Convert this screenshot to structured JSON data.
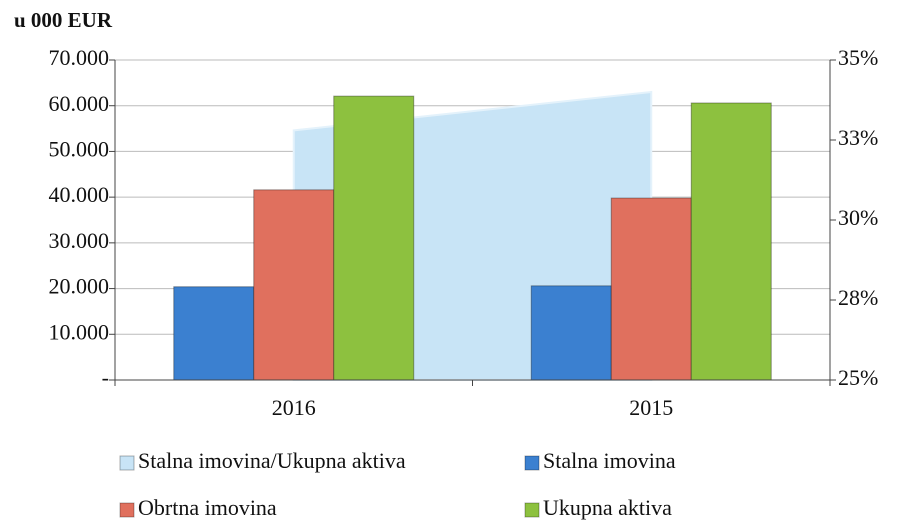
{
  "chart_data": {
    "type": "bar",
    "title": "u 000 EUR",
    "categories": [
      "2016",
      "2015"
    ],
    "series": [
      {
        "name": "Stalna imovina/Ukupna aktiva",
        "type": "area",
        "axis": "y2",
        "color": "#c8e4f6",
        "values": [
          32.8,
          34.0
        ]
      },
      {
        "name": "Stalna imovina",
        "color": "#3b80d0",
        "values": [
          20400,
          20600
        ]
      },
      {
        "name": "Obrtna imovina",
        "color": "#e0705e",
        "values": [
          41600,
          39800
        ]
      },
      {
        "name": "Ukupna aktiva",
        "color": "#8dc13f",
        "values": [
          62100,
          60600
        ]
      }
    ],
    "ylim": [
      0,
      70000
    ],
    "yticks": [
      {
        "value": 0,
        "label": "-"
      },
      {
        "value": 10000,
        "label": "10.000"
      },
      {
        "value": 20000,
        "label": "20.000"
      },
      {
        "value": 30000,
        "label": "30.000"
      },
      {
        "value": 40000,
        "label": "40.000"
      },
      {
        "value": 50000,
        "label": "50.000"
      },
      {
        "value": 60000,
        "label": "60.000"
      },
      {
        "value": 70000,
        "label": "70.000"
      }
    ],
    "y2lim": [
      25,
      35
    ],
    "y2ticks": [
      {
        "value": 25,
        "label": "25%"
      },
      {
        "value": 27.5,
        "label": "28%"
      },
      {
        "value": 30,
        "label": "30%"
      },
      {
        "value": 32.5,
        "label": "33%"
      },
      {
        "value": 35,
        "label": "35%"
      }
    ],
    "grid": true
  }
}
